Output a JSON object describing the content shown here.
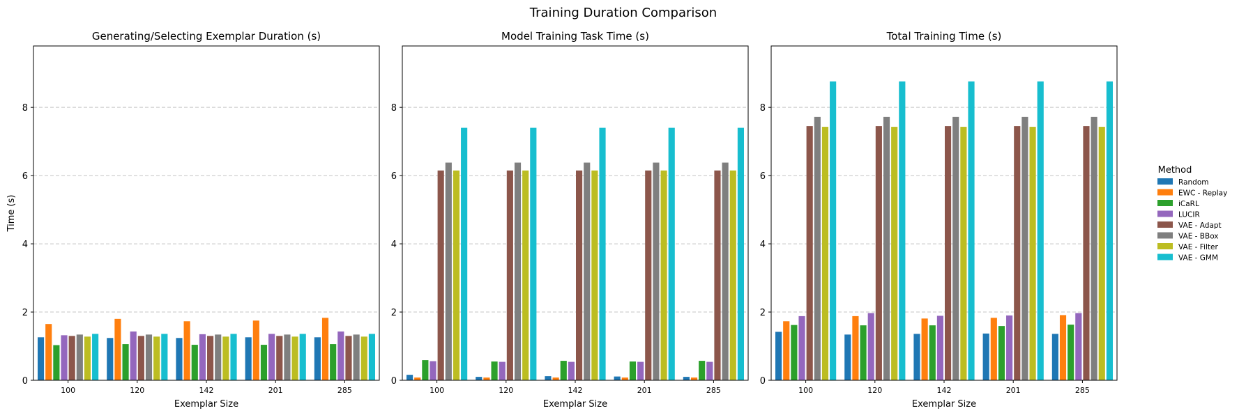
{
  "figure": {
    "title": "Training Duration Comparison"
  },
  "legend": {
    "title": "Method",
    "placement": "right",
    "entries": [
      "Random",
      "EWC - Replay",
      "iCaRL",
      "LUCIR",
      "VAE - Adapt",
      "VAE - BBox",
      "VAE - Filter",
      "VAE - GMM"
    ]
  },
  "colors": {
    "Random": "#1f77b4",
    "EWC - Replay": "#ff7f0e",
    "iCaRL": "#2ca02c",
    "LUCIR": "#9467bd",
    "VAE - Adapt": "#8c564b",
    "VAE - BBox": "#7f7f7f",
    "VAE - Filter": "#bcbd22",
    "VAE - GMM": "#17becf"
  },
  "chart_data": [
    {
      "type": "bar",
      "title": "Generating/Selecting Exemplar Duration (s)",
      "xlabel": "Exemplar Size",
      "ylabel": "Time (s)",
      "ylim": [
        0,
        9.8
      ],
      "yticks": [
        0,
        2,
        4,
        6,
        8
      ],
      "grid": "y-dashed",
      "categories": [
        "100",
        "120",
        "142",
        "201",
        "285"
      ],
      "series": [
        {
          "name": "Random",
          "values": [
            1.26,
            1.24,
            1.24,
            1.26,
            1.26
          ]
        },
        {
          "name": "EWC - Replay",
          "values": [
            1.65,
            1.8,
            1.73,
            1.75,
            1.83
          ]
        },
        {
          "name": "iCaRL",
          "values": [
            1.03,
            1.06,
            1.04,
            1.04,
            1.06
          ]
        },
        {
          "name": "LUCIR",
          "values": [
            1.32,
            1.43,
            1.35,
            1.36,
            1.43
          ]
        },
        {
          "name": "VAE - Adapt",
          "values": [
            1.3,
            1.3,
            1.3,
            1.3,
            1.3
          ]
        },
        {
          "name": "VAE - BBox",
          "values": [
            1.34,
            1.34,
            1.34,
            1.34,
            1.34
          ]
        },
        {
          "name": "VAE - Filter",
          "values": [
            1.28,
            1.28,
            1.28,
            1.28,
            1.28
          ]
        },
        {
          "name": "VAE - GMM",
          "values": [
            1.36,
            1.36,
            1.36,
            1.36,
            1.36
          ]
        }
      ]
    },
    {
      "type": "bar",
      "title": "Model Training Task Time (s)",
      "xlabel": "Exemplar Size",
      "ylabel": "",
      "ylim": [
        0,
        9.8
      ],
      "yticks": [
        0,
        2,
        4,
        6,
        8
      ],
      "grid": "y-dashed",
      "categories": [
        "100",
        "120",
        "142",
        "201",
        "285"
      ],
      "series": [
        {
          "name": "Random",
          "values": [
            0.16,
            0.1,
            0.12,
            0.11,
            0.1
          ]
        },
        {
          "name": "EWC - Replay",
          "values": [
            0.08,
            0.08,
            0.08,
            0.08,
            0.08
          ]
        },
        {
          "name": "iCaRL",
          "values": [
            0.59,
            0.55,
            0.57,
            0.55,
            0.57
          ]
        },
        {
          "name": "LUCIR",
          "values": [
            0.56,
            0.54,
            0.54,
            0.54,
            0.54
          ]
        },
        {
          "name": "VAE - Adapt",
          "values": [
            6.15,
            6.15,
            6.15,
            6.15,
            6.15
          ]
        },
        {
          "name": "VAE - BBox",
          "values": [
            6.38,
            6.38,
            6.38,
            6.38,
            6.38
          ]
        },
        {
          "name": "VAE - Filter",
          "values": [
            6.15,
            6.15,
            6.15,
            6.15,
            6.15
          ]
        },
        {
          "name": "VAE - GMM",
          "values": [
            7.4,
            7.4,
            7.4,
            7.4,
            7.4
          ]
        }
      ]
    },
    {
      "type": "bar",
      "title": "Total Training Time (s)",
      "xlabel": "Exemplar Size",
      "ylabel": "",
      "ylim": [
        0,
        9.8
      ],
      "yticks": [
        0,
        2,
        4,
        6,
        8
      ],
      "grid": "y-dashed",
      "categories": [
        "100",
        "120",
        "142",
        "201",
        "285"
      ],
      "series": [
        {
          "name": "Random",
          "values": [
            1.42,
            1.34,
            1.36,
            1.37,
            1.36
          ]
        },
        {
          "name": "EWC - Replay",
          "values": [
            1.73,
            1.88,
            1.81,
            1.83,
            1.91
          ]
        },
        {
          "name": "iCaRL",
          "values": [
            1.62,
            1.61,
            1.61,
            1.59,
            1.63
          ]
        },
        {
          "name": "LUCIR",
          "values": [
            1.88,
            1.97,
            1.89,
            1.9,
            1.97
          ]
        },
        {
          "name": "VAE - Adapt",
          "values": [
            7.45,
            7.45,
            7.45,
            7.45,
            7.45
          ]
        },
        {
          "name": "VAE - BBox",
          "values": [
            7.72,
            7.72,
            7.72,
            7.72,
            7.72
          ]
        },
        {
          "name": "VAE - Filter",
          "values": [
            7.43,
            7.43,
            7.43,
            7.43,
            7.43
          ]
        },
        {
          "name": "VAE - GMM",
          "values": [
            8.76,
            8.76,
            8.76,
            8.76,
            8.76
          ]
        }
      ]
    }
  ]
}
